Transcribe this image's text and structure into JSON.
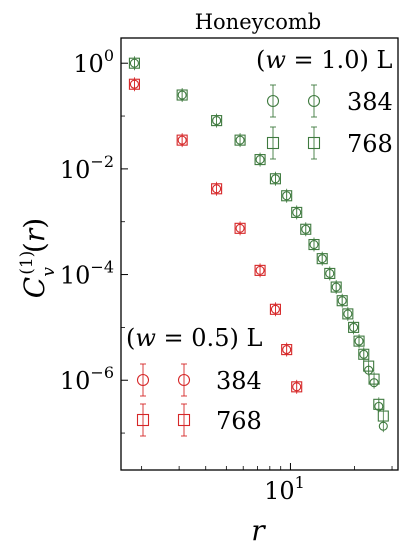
{
  "chart_data": {
    "type": "scatter",
    "title": "Honeycomb",
    "xlabel": "r",
    "ylabel": "C_v^{(1)}(r)",
    "xscale": "log",
    "yscale": "log",
    "xlim": [
      1.6,
      32
    ],
    "ylim": [
      2e-08,
      3
    ],
    "x_ticks": [
      {
        "value": 10,
        "base": "10",
        "exp": "1"
      }
    ],
    "y_ticks": [
      {
        "value": 1,
        "base": "10",
        "exp": "0"
      },
      {
        "value": 0.01,
        "base": "10",
        "exp": "−2"
      },
      {
        "value": 0.0001,
        "base": "10",
        "exp": "−4"
      },
      {
        "value": 1e-06,
        "base": "10",
        "exp": "−6"
      }
    ],
    "legend_w1": {
      "header": "(w = 1.0) L",
      "w_value": "1.0",
      "position": "top-right"
    },
    "legend_w05": {
      "header": "(w = 0.5) L",
      "w_value": "0.5",
      "position": "bottom-left"
    },
    "series": [
      {
        "name": "384",
        "group": "w1",
        "marker": "circle",
        "color": "#3f7a3f",
        "x": [
          1.85,
          3.1,
          4.5,
          5.8,
          7.2,
          8.5,
          9.6,
          10.7,
          11.8,
          12.9,
          14.1,
          15.3,
          16.4,
          17.5,
          18.6,
          19.8,
          21.0,
          22.1,
          23.3,
          24.7,
          26.0,
          27.3
        ],
        "y": [
          1.0,
          0.25,
          0.082,
          0.035,
          0.015,
          0.0065,
          0.0031,
          0.0015,
          0.00072,
          0.00037,
          0.0002,
          0.000105,
          5.8e-05,
          3.2e-05,
          1.8e-05,
          1e-05,
          5.5e-06,
          3.1e-06,
          1.55e-06,
          9e-07,
          3.2e-07,
          1.35e-07
        ]
      },
      {
        "name": "768",
        "group": "w1",
        "marker": "square",
        "color": "#3f7a3f",
        "x": [
          1.85,
          3.1,
          4.5,
          5.8,
          7.2,
          8.5,
          9.6,
          10.7,
          11.8,
          12.9,
          14.1,
          15.3,
          16.4,
          17.5,
          18.6,
          19.8,
          21.0,
          22.1,
          23.3,
          24.7,
          26.0,
          27.3
        ],
        "y": [
          1.0,
          0.25,
          0.082,
          0.035,
          0.015,
          0.0065,
          0.0031,
          0.0015,
          0.00072,
          0.00037,
          0.0002,
          0.000105,
          5.8e-05,
          3.2e-05,
          1.8e-05,
          1e-05,
          5.5e-06,
          3.1e-06,
          1.85e-06,
          1.05e-06,
          3.5e-07,
          2.1e-07
        ]
      },
      {
        "name": "384",
        "group": "w05",
        "marker": "circle",
        "color": "#d62728",
        "x": [
          1.85,
          3.1,
          4.5,
          5.8,
          7.2,
          8.5,
          9.6,
          10.7
        ],
        "y": [
          0.4,
          0.035,
          0.0042,
          0.00075,
          0.00012,
          2.2e-05,
          3.8e-06,
          7.5e-07
        ]
      },
      {
        "name": "768",
        "group": "w05",
        "marker": "square",
        "color": "#d62728",
        "x": [
          1.85,
          3.1,
          4.5,
          5.8,
          7.2,
          8.5,
          9.6,
          10.7
        ],
        "y": [
          0.4,
          0.035,
          0.0042,
          0.00075,
          0.00012,
          2.2e-05,
          3.8e-06,
          7.5e-07
        ]
      }
    ]
  }
}
